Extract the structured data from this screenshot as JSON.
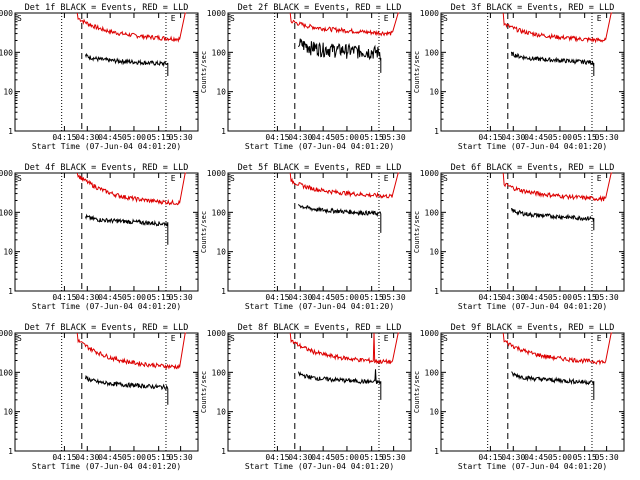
{
  "chart_data": [
    {
      "type": "line",
      "title": "Det 1f BLACK = Events, RED = LLD",
      "xlabel": "Start Time (07-Jun-04 04:01:20)",
      "ylabel": "Counts/sec",
      "yscale": "log",
      "ylim": [
        1,
        1000
      ],
      "xticks": [
        "04:15",
        "04:30",
        "04:45",
        "05:00",
        "05:15",
        "05:30"
      ],
      "yticks": [
        "1",
        "10",
        "100",
        "1000"
      ],
      "markers": [
        "S",
        "E"
      ],
      "series": [
        {
          "name": "Events",
          "color": "#000000",
          "level": 55,
          "start": 80,
          "drop": 25
        },
        {
          "name": "LLD",
          "color": "#dd0000",
          "level": 240,
          "start": 700,
          "end": 1000
        }
      ]
    },
    {
      "type": "line",
      "title": "Det 2f BLACK = Events, RED = LLD",
      "xlabel": "Start Time (07-Jun-04 04:01:20)",
      "ylabel": "Counts/sec",
      "yscale": "log",
      "ylim": [
        1,
        1000
      ],
      "xticks": [
        "04:15",
        "04:30",
        "04:45",
        "05:00",
        "05:15",
        "05:30"
      ],
      "yticks": [
        "1",
        "10",
        "100",
        "1000"
      ],
      "markers": [
        "S",
        "E"
      ],
      "series": [
        {
          "name": "Events",
          "color": "#000000",
          "level": 110,
          "start": 170,
          "drop": 30,
          "noisy": true
        },
        {
          "name": "LLD",
          "color": "#dd0000",
          "level": 330,
          "start": 600,
          "end": 1000
        }
      ]
    },
    {
      "type": "line",
      "title": "Det 3f BLACK = Events, RED = LLD",
      "xlabel": "Start Time (07-Jun-04 04:01:20)",
      "ylabel": "Counts/sec",
      "yscale": "log",
      "ylim": [
        1,
        1000
      ],
      "xticks": [
        "04:15",
        "04:30",
        "04:45",
        "05:00",
        "05:15",
        "05:30"
      ],
      "yticks": [
        "1",
        "10",
        "100",
        "1000"
      ],
      "markers": [
        "S",
        "E"
      ],
      "series": [
        {
          "name": "Events",
          "color": "#000000",
          "level": 60,
          "start": 90,
          "drop": 25
        },
        {
          "name": "LLD",
          "color": "#dd0000",
          "level": 220,
          "start": 500,
          "end": 1000
        }
      ]
    },
    {
      "type": "line",
      "title": "Det 4f BLACK = Events, RED = LLD",
      "xlabel": "Start Time (07-Jun-04 04:01:20)",
      "ylabel": "Counts/sec",
      "yscale": "log",
      "ylim": [
        1,
        1000
      ],
      "xticks": [
        "04:15",
        "04:30",
        "04:45",
        "05:00",
        "05:15",
        "05:30"
      ],
      "yticks": [
        "1",
        "10",
        "100",
        "1000"
      ],
      "markers": [
        "S",
        "E"
      ],
      "series": [
        {
          "name": "Events",
          "color": "#000000",
          "level": 55,
          "start": 75,
          "drop": 15
        },
        {
          "name": "LLD",
          "color": "#dd0000",
          "level": 190,
          "start": 800,
          "end": 1000
        }
      ]
    },
    {
      "type": "line",
      "title": "Det 5f BLACK = Events, RED = LLD",
      "xlabel": "Start Time (07-Jun-04 04:01:20)",
      "ylabel": "Counts/sec",
      "yscale": "log",
      "ylim": [
        1,
        1000
      ],
      "xticks": [
        "04:15",
        "04:30",
        "04:45",
        "05:00",
        "05:15",
        "05:30"
      ],
      "yticks": [
        "1",
        "10",
        "100",
        "1000"
      ],
      "markers": [
        "S",
        "E"
      ],
      "series": [
        {
          "name": "Events",
          "color": "#000000",
          "level": 100,
          "start": 150,
          "drop": 30
        },
        {
          "name": "LLD",
          "color": "#dd0000",
          "level": 280,
          "start": 600,
          "end": 1000
        }
      ]
    },
    {
      "type": "line",
      "title": "Det 6f BLACK = Events, RED = LLD",
      "xlabel": "Start Time (07-Jun-04 04:01:20)",
      "ylabel": "Counts/sec",
      "yscale": "log",
      "ylim": [
        1,
        1000
      ],
      "xticks": [
        "04:15",
        "04:30",
        "04:45",
        "05:00",
        "05:15",
        "05:30"
      ],
      "yticks": [
        "1",
        "10",
        "100",
        "1000"
      ],
      "markers": [
        "S",
        "E"
      ],
      "series": [
        {
          "name": "Events",
          "color": "#000000",
          "level": 75,
          "start": 110,
          "drop": 35
        },
        {
          "name": "LLD",
          "color": "#dd0000",
          "level": 240,
          "start": 500,
          "end": 1000
        }
      ]
    },
    {
      "type": "line",
      "title": "Det 7f BLACK = Events, RED = LLD",
      "xlabel": "Start Time (07-Jun-04 04:01:20)",
      "ylabel": "Counts/sec",
      "yscale": "log",
      "ylim": [
        1,
        1000
      ],
      "xticks": [
        "04:15",
        "04:30",
        "04:45",
        "05:00",
        "05:15",
        "05:30"
      ],
      "yticks": [
        "1",
        "10",
        "100",
        "1000"
      ],
      "markers": [
        "S",
        "E"
      ],
      "series": [
        {
          "name": "Events",
          "color": "#000000",
          "level": 45,
          "start": 70,
          "drop": 15
        },
        {
          "name": "LLD",
          "color": "#dd0000",
          "level": 150,
          "start": 600,
          "end": 1000
        }
      ]
    },
    {
      "type": "line",
      "title": "Det 8f BLACK = Events, RED = LLD",
      "xlabel": "Start Time (07-Jun-04 04:01:20)",
      "ylabel": "Counts/sec",
      "yscale": "log",
      "ylim": [
        1,
        1000
      ],
      "xticks": [
        "04:15",
        "04:30",
        "04:45",
        "05:00",
        "05:15",
        "05:30"
      ],
      "yticks": [
        "1",
        "10",
        "100",
        "1000"
      ],
      "markers": [
        "S",
        "E"
      ],
      "series": [
        {
          "name": "Events",
          "color": "#000000",
          "level": 60,
          "start": 90,
          "drop": 20,
          "spike": true
        },
        {
          "name": "LLD",
          "color": "#dd0000",
          "level": 200,
          "start": 600,
          "end": 1000,
          "spike": true
        }
      ]
    },
    {
      "type": "line",
      "title": "Det 9f BLACK = Events, RED = LLD",
      "xlabel": "Start Time (07-Jun-04 04:01:20)",
      "ylabel": "Counts/sec",
      "yscale": "log",
      "ylim": [
        1,
        1000
      ],
      "xticks": [
        "04:15",
        "04:30",
        "04:45",
        "05:00",
        "05:15",
        "05:30"
      ],
      "yticks": [
        "1",
        "10",
        "100",
        "1000"
      ],
      "markers": [
        "S",
        "E"
      ],
      "series": [
        {
          "name": "Events",
          "color": "#000000",
          "level": 60,
          "start": 90,
          "drop": 20
        },
        {
          "name": "LLD",
          "color": "#dd0000",
          "level": 200,
          "start": 600,
          "end": 1000
        }
      ]
    }
  ]
}
